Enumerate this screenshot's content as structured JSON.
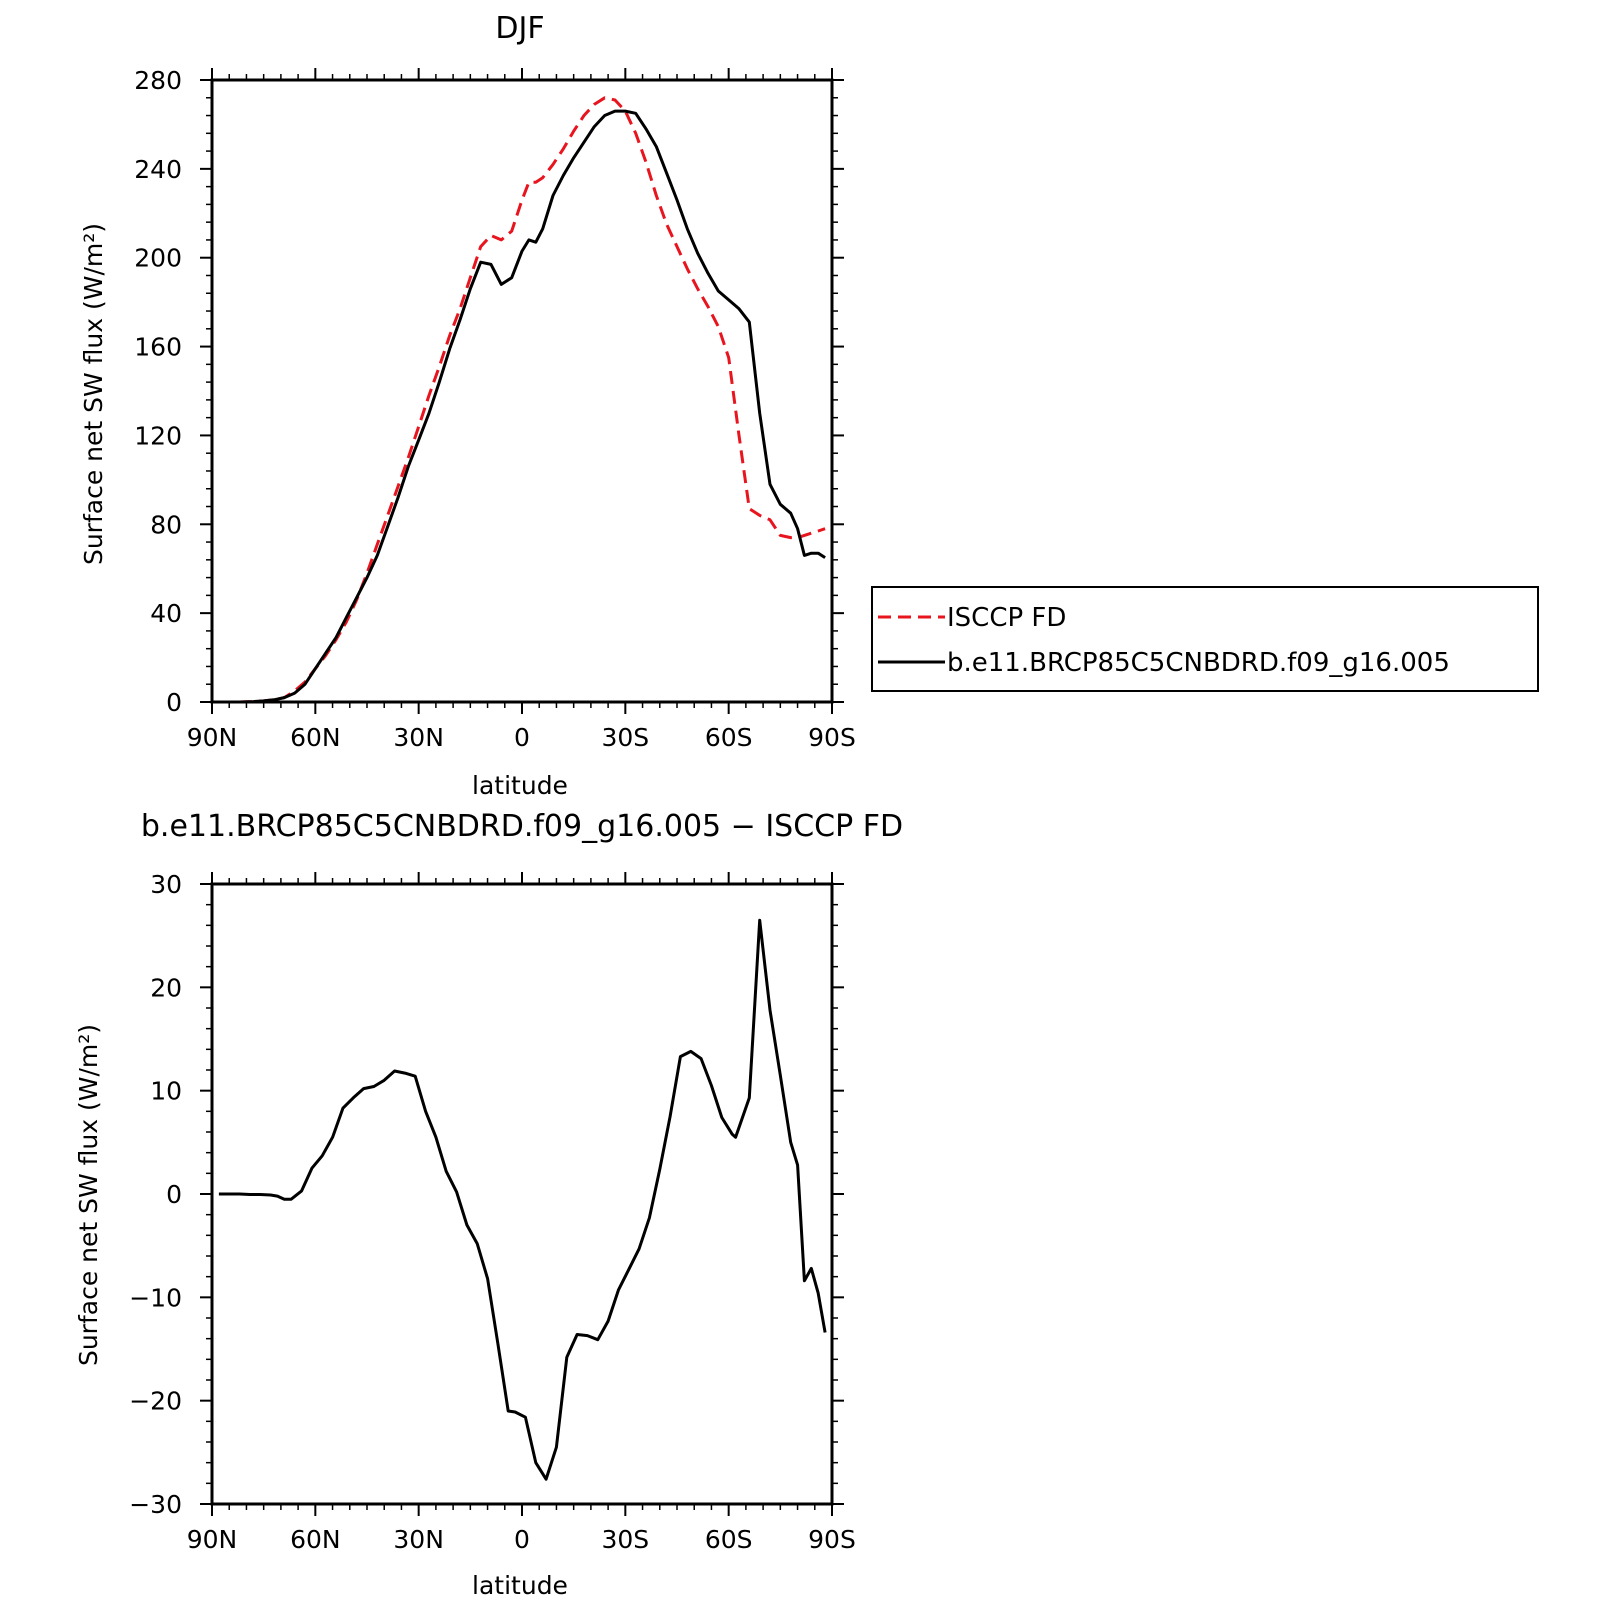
{
  "chart_data": [
    {
      "type": "line",
      "title": "DJF",
      "xlabel": "latitude",
      "ylabel": "Surface net SW flux (W/m²)",
      "xlim": [
        -90,
        90
      ],
      "ylim": [
        0,
        280
      ],
      "x_ticks": [
        -90,
        -60,
        -30,
        0,
        30,
        60,
        90
      ],
      "x_tick_labels": [
        "90N",
        "60N",
        "30N",
        "0",
        "30S",
        "60S",
        "90S"
      ],
      "y_ticks": [
        0,
        40,
        80,
        120,
        160,
        200,
        240,
        280
      ],
      "y_tick_labels": [
        "0",
        "40",
        "80",
        "120",
        "160",
        "200",
        "240",
        "280"
      ],
      "grid": false,
      "legend_position": "right",
      "series": [
        {
          "name": "ISCCP FD",
          "color": "#e8141e",
          "dash": "dashed",
          "x": [
            -88,
            -85,
            -82,
            -78,
            -75,
            -72,
            -69,
            -66,
            -63,
            -60,
            -57,
            -54,
            -51,
            -48,
            -45,
            -42,
            -39,
            -36,
            -33,
            -30,
            -27,
            -24,
            -21,
            -18,
            -15,
            -12,
            -9,
            -6,
            -3,
            0,
            2,
            4,
            6,
            9,
            12,
            15,
            18,
            21,
            24,
            27,
            30,
            33,
            36,
            39,
            42,
            45,
            48,
            51,
            54,
            57,
            60,
            63,
            66,
            69,
            72,
            75,
            78,
            80,
            82,
            84,
            86,
            88
          ],
          "values": [
            0,
            0,
            0,
            0.2,
            0.5,
            1,
            2,
            5,
            9,
            15,
            21,
            28,
            36,
            46,
            58,
            71,
            84,
            97,
            110,
            124,
            138,
            151,
            165,
            177,
            191,
            205,
            210,
            208,
            212,
            226,
            234,
            234,
            236,
            242,
            249,
            257,
            264,
            269,
            272,
            271,
            266,
            256,
            243,
            228,
            215,
            205,
            195,
            186,
            178,
            169,
            155,
            120,
            87,
            84,
            82,
            75,
            74,
            74,
            75,
            76,
            77,
            78
          ]
        },
        {
          "name": "b.e11.BRCP85C5CNBDRD.f09_g16.005",
          "color": "#000000",
          "dash": "solid",
          "x": [
            -88,
            -85,
            -82,
            -78,
            -75,
            -72,
            -69,
            -66,
            -63,
            -60,
            -57,
            -54,
            -51,
            -48,
            -45,
            -42,
            -39,
            -36,
            -33,
            -30,
            -27,
            -24,
            -21,
            -18,
            -15,
            -12,
            -9,
            -6,
            -3,
            0,
            2,
            4,
            6,
            9,
            12,
            15,
            18,
            21,
            24,
            27,
            30,
            33,
            36,
            39,
            42,
            45,
            48,
            51,
            54,
            57,
            60,
            63,
            66,
            69,
            72,
            75,
            78,
            80,
            82,
            84,
            86,
            88
          ],
          "values": [
            0,
            0,
            0,
            0.2,
            0.5,
            1,
            2,
            4,
            8,
            15,
            22,
            29,
            38,
            47,
            56,
            66,
            79,
            92,
            106,
            118,
            130,
            144,
            159,
            172,
            186,
            198,
            197,
            188,
            191,
            203,
            208,
            207,
            213,
            228,
            237,
            245,
            252,
            259,
            264,
            266,
            266,
            265,
            258,
            250,
            238,
            226,
            213,
            202,
            193,
            185,
            181,
            177,
            171,
            130,
            98,
            89,
            85,
            78,
            66,
            67,
            67,
            65
          ]
        }
      ]
    },
    {
      "type": "line",
      "title": "b.e11.BRCP85C5CNBDRD.f09_g16.005 − ISCCP FD",
      "xlabel": "latitude",
      "ylabel": "Surface net SW flux (W/m²)",
      "xlim": [
        -90,
        90
      ],
      "ylim": [
        -30,
        30
      ],
      "x_ticks": [
        -90,
        -60,
        -30,
        0,
        30,
        60,
        90
      ],
      "x_tick_labels": [
        "90N",
        "60N",
        "30N",
        "0",
        "30S",
        "60S",
        "90S"
      ],
      "y_ticks": [
        -30,
        -20,
        -10,
        0,
        10,
        20,
        30
      ],
      "y_tick_labels": [
        "−30",
        "−20",
        "−10",
        "0",
        "10",
        "20",
        "30"
      ],
      "grid": false,
      "series": [
        {
          "color": "#000000",
          "dash": "solid",
          "x": [
            -88,
            -85,
            -82,
            -79,
            -76,
            -73,
            -71,
            -69,
            -67,
            -64,
            -61,
            -58,
            -55,
            -52,
            -49,
            -46,
            -43,
            -40,
            -37,
            -34,
            -31,
            -28,
            -25,
            -22,
            -19,
            -16,
            -13,
            -10,
            -7,
            -4,
            -2,
            1,
            4,
            7,
            10,
            13,
            16,
            19,
            22,
            25,
            28,
            31,
            34,
            37,
            40,
            43,
            46,
            49,
            52,
            55,
            58,
            61,
            62,
            66,
            69,
            72,
            75,
            78,
            80,
            82,
            84,
            86,
            88
          ],
          "values": [
            0,
            0,
            0,
            -0.05,
            -0.05,
            -0.1,
            -0.2,
            -0.5,
            -0.5,
            0.3,
            2.5,
            3.7,
            5.5,
            8.3,
            9.3,
            10.2,
            10.4,
            11,
            11.9,
            11.7,
            11.4,
            8,
            5.5,
            2.2,
            0.2,
            -3,
            -4.8,
            -8.2,
            -14.5,
            -21,
            -21.1,
            -21.6,
            -26,
            -27.6,
            -24.5,
            -15.8,
            -13.6,
            -13.7,
            -14.1,
            -12.3,
            -9.3,
            -7.3,
            -5.3,
            -2.3,
            2.4,
            7.5,
            13.3,
            13.8,
            13.1,
            10.5,
            7.4,
            5.8,
            5.5,
            9.3,
            26.5,
            17.8,
            11.5,
            5,
            2.8,
            -8.4,
            -7.2,
            -9.6,
            -13.4
          ]
        }
      ]
    }
  ]
}
